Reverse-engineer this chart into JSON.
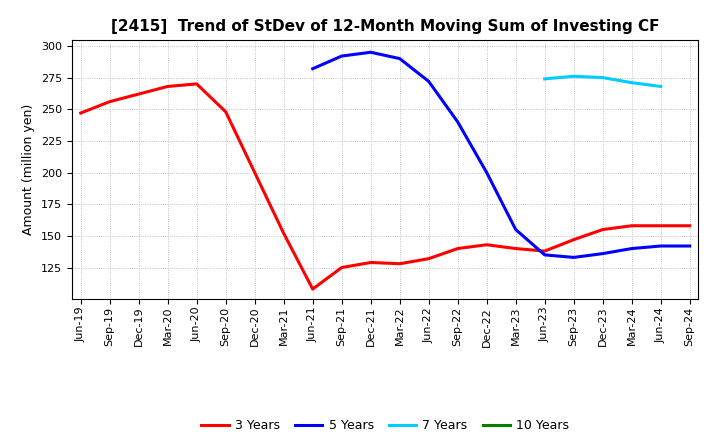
{
  "title": "[2415]  Trend of StDev of 12-Month Moving Sum of Investing CF",
  "ylabel": "Amount (million yen)",
  "ylim": [
    100,
    305
  ],
  "yticks": [
    125,
    150,
    175,
    200,
    225,
    250,
    275,
    300
  ],
  "background_color": "#ffffff",
  "grid_color": "#b0b0b0",
  "legend_entries": [
    "3 Years",
    "5 Years",
    "7 Years",
    "10 Years"
  ],
  "legend_colors": [
    "#ff0000",
    "#0000ff",
    "#00ccff",
    "#008000"
  ],
  "x_labels": [
    "Jun-19",
    "Sep-19",
    "Dec-19",
    "Mar-20",
    "Jun-20",
    "Sep-20",
    "Dec-20",
    "Mar-21",
    "Jun-21",
    "Sep-21",
    "Dec-21",
    "Mar-22",
    "Jun-22",
    "Sep-22",
    "Dec-22",
    "Mar-23",
    "Jun-23",
    "Sep-23",
    "Dec-23",
    "Mar-24",
    "Jun-24",
    "Sep-24"
  ],
  "series_3y_x": [
    0,
    1,
    2,
    3,
    4,
    5,
    6,
    7,
    8,
    9,
    10,
    11,
    12,
    13,
    14,
    15,
    16,
    17,
    18,
    19,
    20,
    21
  ],
  "series_3y_y": [
    247,
    256,
    262,
    268,
    270,
    248,
    200,
    152,
    108,
    125,
    129,
    128,
    132,
    140,
    143,
    140,
    138,
    147,
    155,
    158,
    158,
    158
  ],
  "series_5y_x": [
    8,
    9,
    10,
    11,
    12,
    13,
    14,
    15,
    16,
    17,
    18,
    19,
    20,
    21
  ],
  "series_5y_y": [
    282,
    292,
    295,
    290,
    272,
    240,
    200,
    155,
    135,
    133,
    136,
    140,
    142,
    142
  ],
  "series_7y_x": [
    16,
    17,
    18,
    19,
    20
  ],
  "series_7y_y": [
    274,
    276,
    275,
    271,
    268
  ],
  "series_10y_x": [],
  "series_10y_y": [],
  "title_fontsize": 11,
  "ylabel_fontsize": 9,
  "tick_fontsize": 8,
  "legend_fontsize": 9,
  "linewidth": 2.2
}
